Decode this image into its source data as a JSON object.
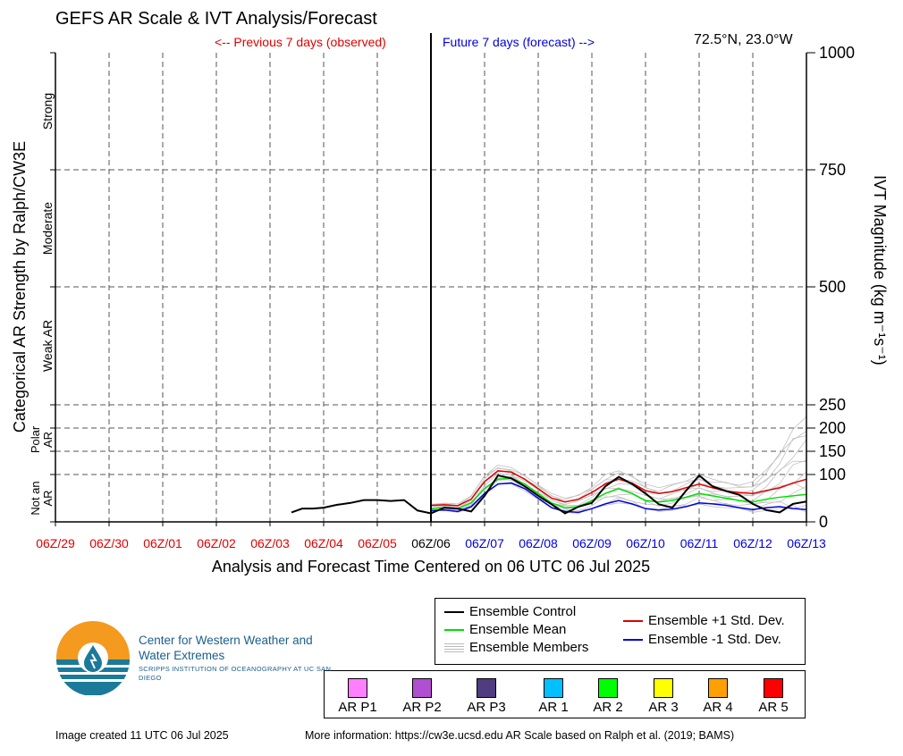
{
  "header": {
    "title": "GEFS AR Scale & IVT Analysis/Forecast",
    "prev_label": "<-- Previous 7 days (observed)",
    "future_label": "Future 7 days (forecast) -->",
    "coords": "72.5°N, 23.0°W"
  },
  "chart_data": {
    "type": "line",
    "xlabel": "Analysis and Forecast Time Centered on 06 UTC 06 Jul 2025",
    "ylabel_left": "Categorical AR Strength by Ralph/CW3E",
    "ylabel_right": "IVT Magnitude (kg m⁻¹s⁻¹)",
    "x_ticks": [
      "06Z/29",
      "06Z/30",
      "06Z/01",
      "06Z/02",
      "06Z/03",
      "06Z/04",
      "06Z/05",
      "06Z/06",
      "06Z/07",
      "06Z/08",
      "06Z/09",
      "06Z/10",
      "06Z/11",
      "06Z/12",
      "06Z/13"
    ],
    "x_tick_colors": [
      "#e00000",
      "#e00000",
      "#e00000",
      "#e00000",
      "#e00000",
      "#e00000",
      "#e00000",
      "#000000",
      "#0000e0",
      "#0000e0",
      "#0000e0",
      "#0000e0",
      "#0000e0",
      "#0000e0",
      "#0000e0"
    ],
    "x_range_days": [
      0,
      14
    ],
    "y_ticks": [
      0,
      100,
      150,
      200,
      250,
      500,
      750,
      1000
    ],
    "y_tick_labels": [
      "0",
      "100",
      "150",
      "200",
      "250",
      "500",
      "750",
      "1000"
    ],
    "ylim": [
      0,
      1000
    ],
    "category_labels": [
      {
        "text": "Strong",
        "y": 875
      },
      {
        "text": "Moderate",
        "y": 625
      },
      {
        "text": "Weak AR",
        "y": 375
      },
      {
        "text": "Polar AR",
        "y": 175
      },
      {
        "text": "Not an AR",
        "y": 50
      }
    ],
    "series": [
      {
        "name": "Ensemble Control",
        "color": "#000000",
        "role": "control",
        "x": [
          4.4,
          4.6,
          4.8,
          5.0,
          5.25,
          5.5,
          5.75,
          6.0,
          6.25,
          6.5,
          6.75,
          7.0,
          7.25,
          7.5,
          7.75,
          8.0,
          8.25,
          8.5,
          8.75,
          9.0,
          9.25,
          9.5,
          9.75,
          10.0,
          10.25,
          10.5,
          10.75,
          11.0,
          11.25,
          11.5,
          11.75,
          12.0,
          12.25,
          12.5,
          12.75,
          13.0,
          13.25,
          13.5,
          13.75,
          14.0
        ],
        "y": [
          20,
          28,
          28,
          30,
          36,
          40,
          46,
          46,
          44,
          46,
          24,
          18,
          30,
          28,
          22,
          55,
          98,
          92,
          75,
          55,
          37,
          18,
          32,
          40,
          75,
          95,
          80,
          60,
          37,
          30,
          65,
          98,
          75,
          65,
          57,
          38,
          25,
          20,
          38,
          43
        ]
      },
      {
        "name": "Ensemble Mean",
        "color": "#00e000",
        "role": "mean",
        "x": [
          7.0,
          7.25,
          7.5,
          7.75,
          8.0,
          8.25,
          8.5,
          8.75,
          9.0,
          9.25,
          9.5,
          9.75,
          10.0,
          10.25,
          10.5,
          10.75,
          11.0,
          11.25,
          11.5,
          11.75,
          12.0,
          12.25,
          12.5,
          12.75,
          13.0,
          13.25,
          13.5,
          13.75,
          14.0
        ],
        "y": [
          28,
          30,
          28,
          40,
          70,
          90,
          92,
          80,
          60,
          40,
          30,
          32,
          45,
          60,
          70,
          60,
          45,
          42,
          45,
          52,
          60,
          55,
          50,
          45,
          42,
          48,
          52,
          55,
          58
        ]
      },
      {
        "name": "Ensemble +1 Std. Dev.",
        "color": "#e00000",
        "role": "plus",
        "x": [
          7.0,
          7.25,
          7.5,
          7.75,
          8.0,
          8.25,
          8.5,
          8.75,
          9.0,
          9.25,
          9.5,
          9.75,
          10.0,
          10.25,
          10.5,
          10.75,
          11.0,
          11.25,
          11.5,
          11.75,
          12.0,
          12.25,
          12.5,
          12.75,
          13.0,
          13.25,
          13.5,
          13.75,
          14.0
        ],
        "y": [
          35,
          36,
          34,
          48,
          85,
          108,
          105,
          90,
          70,
          50,
          42,
          48,
          62,
          80,
          90,
          82,
          66,
          60,
          64,
          72,
          80,
          72,
          65,
          62,
          60,
          66,
          72,
          82,
          90
        ]
      },
      {
        "name": "Ensemble -1 Std. Dev.",
        "color": "#0000e0",
        "role": "minus",
        "x": [
          7.0,
          7.25,
          7.5,
          7.75,
          8.0,
          8.25,
          8.5,
          8.75,
          9.0,
          9.25,
          9.5,
          9.75,
          10.0,
          10.25,
          10.5,
          10.75,
          11.0,
          11.25,
          11.5,
          11.75,
          12.0,
          12.25,
          12.5,
          12.75,
          13.0,
          13.25,
          13.5,
          13.75,
          14.0
        ],
        "y": [
          24,
          25,
          22,
          32,
          60,
          80,
          82,
          70,
          50,
          30,
          22,
          20,
          28,
          38,
          45,
          38,
          28,
          25,
          27,
          32,
          40,
          38,
          35,
          30,
          26,
          30,
          32,
          28,
          26
        ]
      },
      {
        "name": "Ensemble Members",
        "color": "#c0c0c0",
        "role": "members",
        "x": [
          7.0,
          7.25,
          7.5,
          7.75,
          8.0,
          8.25,
          8.5,
          8.75,
          9.0,
          9.25,
          9.5,
          9.75,
          10.0,
          10.25,
          10.5,
          10.75,
          11.0,
          11.25,
          11.5,
          11.75,
          12.0,
          12.25,
          12.5,
          12.75,
          13.0,
          13.25,
          13.5,
          13.75,
          14.0
        ],
        "y_min": [
          22,
          24,
          20,
          30,
          55,
          78,
          80,
          65,
          45,
          28,
          20,
          18,
          25,
          35,
          40,
          35,
          25,
          22,
          24,
          28,
          35,
          32,
          30,
          25,
          20,
          24,
          26,
          22,
          20
        ],
        "y_max": [
          38,
          40,
          38,
          55,
          100,
          120,
          115,
          98,
          80,
          60,
          50,
          58,
          75,
          100,
          108,
          100,
          80,
          72,
          80,
          90,
          100,
          90,
          85,
          80,
          85,
          110,
          150,
          200,
          225
        ]
      }
    ]
  },
  "legend": {
    "control": "Ensemble Control",
    "mean": "Ensemble Mean",
    "members": "Ensemble Members",
    "plus": "Ensemble +1 Std. Dev.",
    "minus": "Ensemble -1 Std. Dev."
  },
  "categories": [
    {
      "label": "AR P1",
      "color": "#ff80ff"
    },
    {
      "label": "AR P2",
      "color": "#b050d0"
    },
    {
      "label": "AR P3",
      "color": "#503c80"
    },
    {
      "label": "AR 1",
      "color": "#00c0ff"
    },
    {
      "label": "AR 2",
      "color": "#00ff00"
    },
    {
      "label": "AR 3",
      "color": "#ffff00"
    },
    {
      "label": "AR 4",
      "color": "#ffa000"
    },
    {
      "label": "AR 5",
      "color": "#ff0000"
    }
  ],
  "org": {
    "name": "Center for Western Weather and Water Extremes",
    "sub": "SCRIPPS INSTITUTION OF OCEANOGRAPHY AT UC SAN DIEGO"
  },
  "footer": {
    "created": "Image created 11 UTC 06 Jul 2025",
    "more_info": "More information: https://cw3e.ucsd.edu AR Scale based on Ralph et al. (2019; BAMS)"
  }
}
